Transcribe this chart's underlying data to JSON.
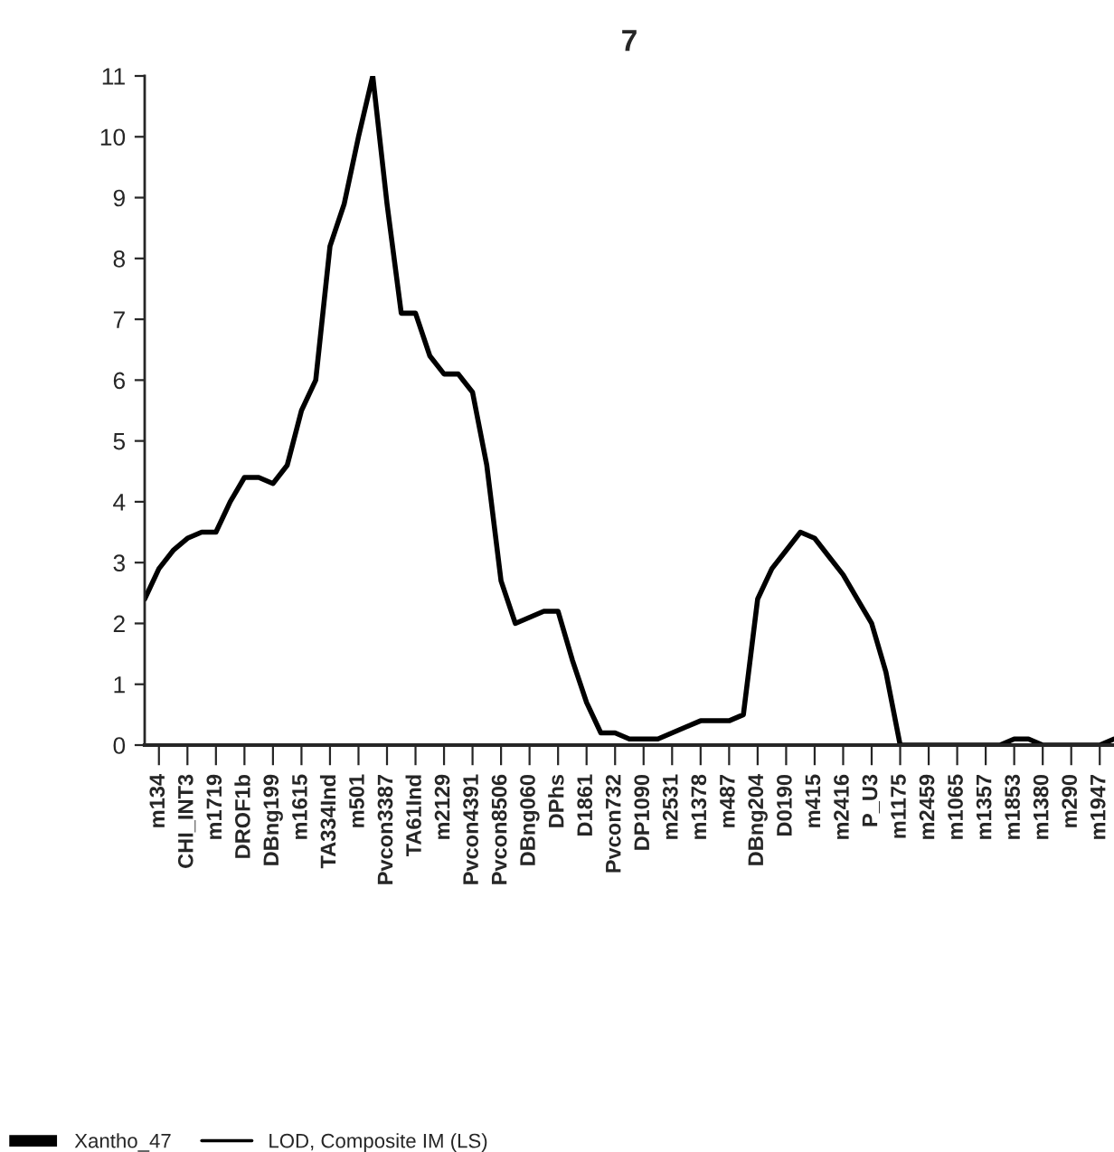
{
  "chart_data": {
    "type": "line",
    "title": "7",
    "legend_title": "Xantho_47",
    "categories": [
      null,
      "m134",
      null,
      "CHI_INT3",
      null,
      "m1719",
      null,
      "DROF1b",
      null,
      "DBng199",
      null,
      "m1615",
      null,
      "TA334Ind",
      null,
      "m501",
      null,
      "Pvcon3387",
      null,
      "TA61Ind",
      null,
      "m2129",
      null,
      "Pvcon4391",
      null,
      "Pvcon8506",
      null,
      "DBng060",
      null,
      "DPhs",
      null,
      "D1861",
      null,
      "Pvcon732",
      null,
      "DP1090",
      null,
      "m2531",
      null,
      "m1378",
      null,
      "m487",
      null,
      "DBng204",
      null,
      "D0190",
      null,
      "m415",
      null,
      "m2416",
      null,
      "P_U3",
      null,
      "m1175",
      null,
      "m2459",
      null,
      "m1065",
      null,
      "m1357",
      null,
      "m1853",
      null,
      "m1380",
      null,
      "m290",
      null,
      "m1947",
      null
    ],
    "series": [
      {
        "name": "LOD, Composite IM (LS)",
        "color": "#000000",
        "values": [
          2.4,
          2.9,
          3.2,
          3.4,
          3.5,
          3.5,
          4.0,
          4.4,
          4.4,
          4.3,
          4.6,
          5.5,
          6.0,
          8.2,
          8.9,
          10.0,
          11.0,
          8.9,
          7.1,
          7.1,
          6.4,
          6.1,
          6.1,
          5.8,
          4.6,
          2.7,
          2.0,
          2.1,
          2.2,
          2.2,
          1.4,
          0.7,
          0.2,
          0.2,
          0.1,
          0.1,
          0.1,
          0.2,
          0.3,
          0.4,
          0.4,
          0.4,
          0.5,
          2.4,
          2.9,
          3.2,
          3.5,
          3.4,
          3.1,
          2.8,
          2.4,
          2.0,
          1.2,
          0.0,
          0.0,
          0.0,
          0.0,
          0.0,
          0.0,
          0.0,
          0.0,
          0.1,
          0.1,
          0.0,
          0.0,
          0.0,
          0.0,
          0.0,
          0.1
        ]
      }
    ],
    "ylim": [
      0,
      11
    ],
    "yticks": [
      0,
      1,
      2,
      3,
      4,
      5,
      6,
      7,
      8,
      9,
      10,
      11
    ],
    "grid": false,
    "legend": "bottom left",
    "marker": "none",
    "line_style": "solid"
  }
}
